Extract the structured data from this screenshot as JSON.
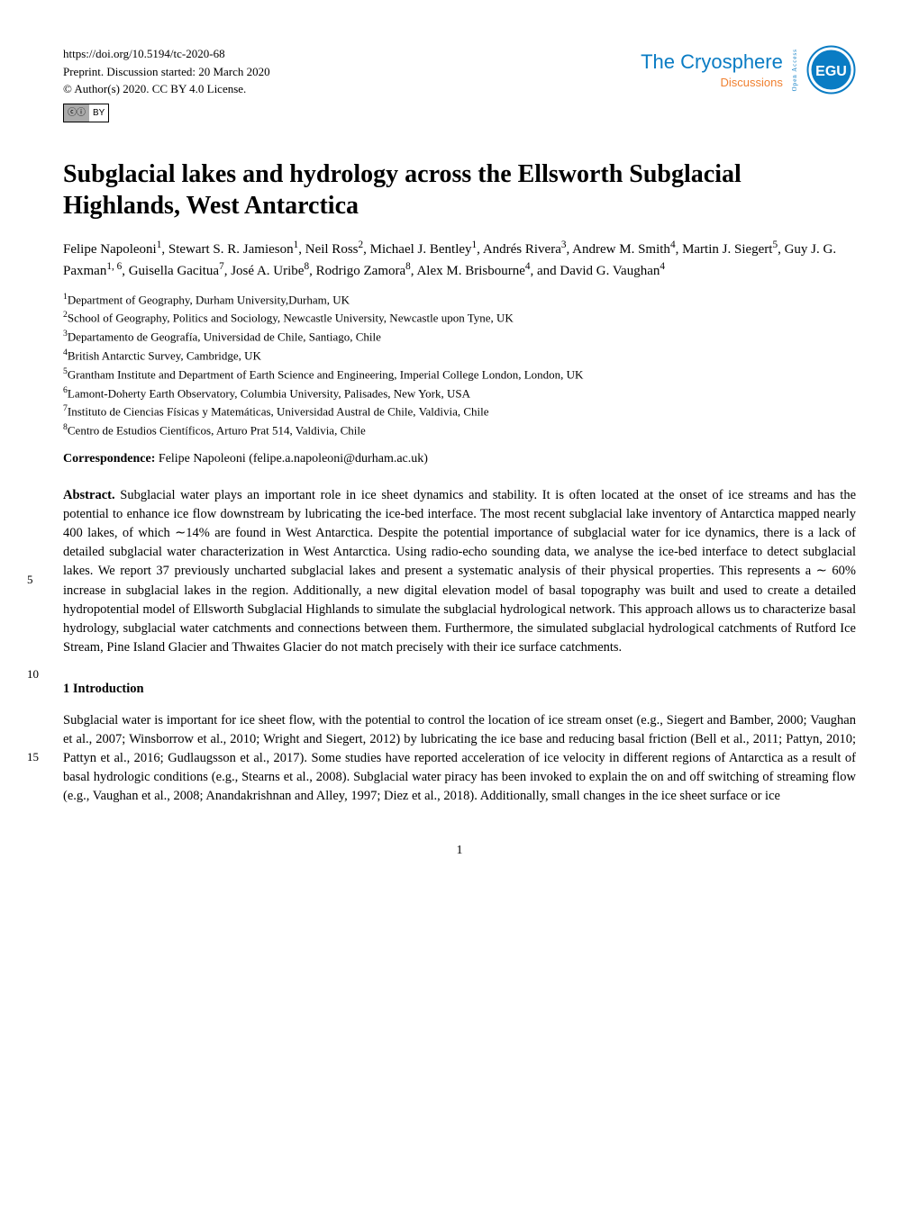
{
  "header": {
    "doi": "https://doi.org/10.5194/tc-2020-68",
    "preprint_line": "Preprint. Discussion started: 20 March 2020",
    "copyright_line": "© Author(s) 2020. CC BY 4.0 License.",
    "journal_name": "The Cryosphere",
    "discussions": "Discussions",
    "open_access": "Open Access",
    "egu_label": "EGU",
    "cc_label": "cc",
    "by_label": "BY"
  },
  "title": "Subglacial lakes and hydrology across the Ellsworth Subglacial Highlands, West Antarctica",
  "authors_html": "Felipe Napoleoni<sup>1</sup>, Stewart S. R. Jamieson<sup>1</sup>, Neil Ross<sup>2</sup>, Michael J. Bentley<sup>1</sup>, Andrés Rivera<sup>3</sup>, Andrew M. Smith<sup>4</sup>, Martin J. Siegert<sup>5</sup>, Guy J. G. Paxman<sup>1, 6</sup>, Guisella Gacitua<sup>7</sup>, José A. Uribe<sup>8</sup>, Rodrigo Zamora<sup>8</sup>, Alex M. Brisbourne<sup>4</sup>, and David G. Vaughan<sup>4</sup>",
  "affiliations": [
    "<sup>1</sup>Department of Geography, Durham University,Durham, UK",
    "<sup>2</sup>School of Geography, Politics and Sociology, Newcastle University, Newcastle upon Tyne, UK",
    "<sup>3</sup>Departamento de Geografía, Universidad de Chile, Santiago, Chile",
    "<sup>4</sup>British Antarctic Survey, Cambridge, UK",
    "<sup>5</sup>Grantham Institute and Department of Earth Science and Engineering, Imperial College London, London, UK",
    "<sup>6</sup>Lamont-Doherty Earth Observatory, Columbia University, Palisades, New York, USA",
    "<sup>7</sup>Instituto de Ciencias Físicas y Matemáticas, Universidad Austral de Chile, Valdivia, Chile",
    "<sup>8</sup>Centro de Estudios Científicos, Arturo Prat 514, Valdivia, Chile"
  ],
  "correspondence_label": "Correspondence:",
  "correspondence_text": "Felipe Napoleoni (felipe.a.napoleoni@durham.ac.uk)",
  "abstract_label": "Abstract.",
  "abstract_text": "Subglacial water plays an important role in ice sheet dynamics and stability. It is often located at the onset of ice streams and has the potential to enhance ice flow downstream by lubricating the ice-bed interface. The most recent subglacial lake inventory of Antarctica mapped nearly 400 lakes, of which ∼14% are found in West Antarctica. Despite the potential importance of subglacial water for ice dynamics, there is a lack of detailed subglacial water characterization in West Antarctica. Using radio-echo sounding data, we analyse the ice-bed interface to detect subglacial lakes. We report 37 previously uncharted subglacial lakes and present a systematic analysis of their physical properties. This represents a ∼ 60% increase in subglacial lakes in the region. Additionally, a new digital elevation model of basal topography was built and used to create a detailed hydropotential model of Ellsworth Subglacial Highlands to simulate the subglacial hydrological network. This approach allows us to characterize basal hydrology, subglacial water catchments and connections between them. Furthermore, the simulated subglacial hydrological catchments of Rutford Ice Stream, Pine Island Glacier and Thwaites Glacier do not match precisely with their ice surface catchments.",
  "section1_heading": "1   Introduction",
  "intro_text": "Subglacial water is important for ice sheet flow, with the potential to control the location of ice stream onset (e.g., Siegert and Bamber, 2000; Vaughan et al., 2007; Winsborrow et al., 2010; Wright and Siegert, 2012) by lubricating the ice base and reducing basal friction (Bell et al., 2011; Pattyn, 2010; Pattyn et al., 2016; Gudlaugsson et al., 2017). Some studies have reported acceleration of ice velocity in different regions of Antarctica as a result of basal hydrologic conditions (e.g., Stearns et al., 2008). Subglacial water piracy has been invoked to explain the on and off switching of streaming flow (e.g., Vaughan et al., 2008; Anandakrishnan and Alley, 1997; Diez et al., 2018). Additionally, small changes in the ice sheet surface or ice",
  "line_numbers": {
    "ln5": "5",
    "ln10": "10",
    "ln15": "15"
  },
  "page_number": "1",
  "colors": {
    "journal_blue": "#0a7cc4",
    "discussions_orange": "#f08030",
    "text_black": "#000000",
    "background": "#ffffff",
    "egu_blue": "#0a7cc4"
  },
  "typography": {
    "title_size": 28,
    "body_size": 14.5,
    "header_size": 13,
    "authors_size": 15,
    "affiliations_size": 13
  }
}
